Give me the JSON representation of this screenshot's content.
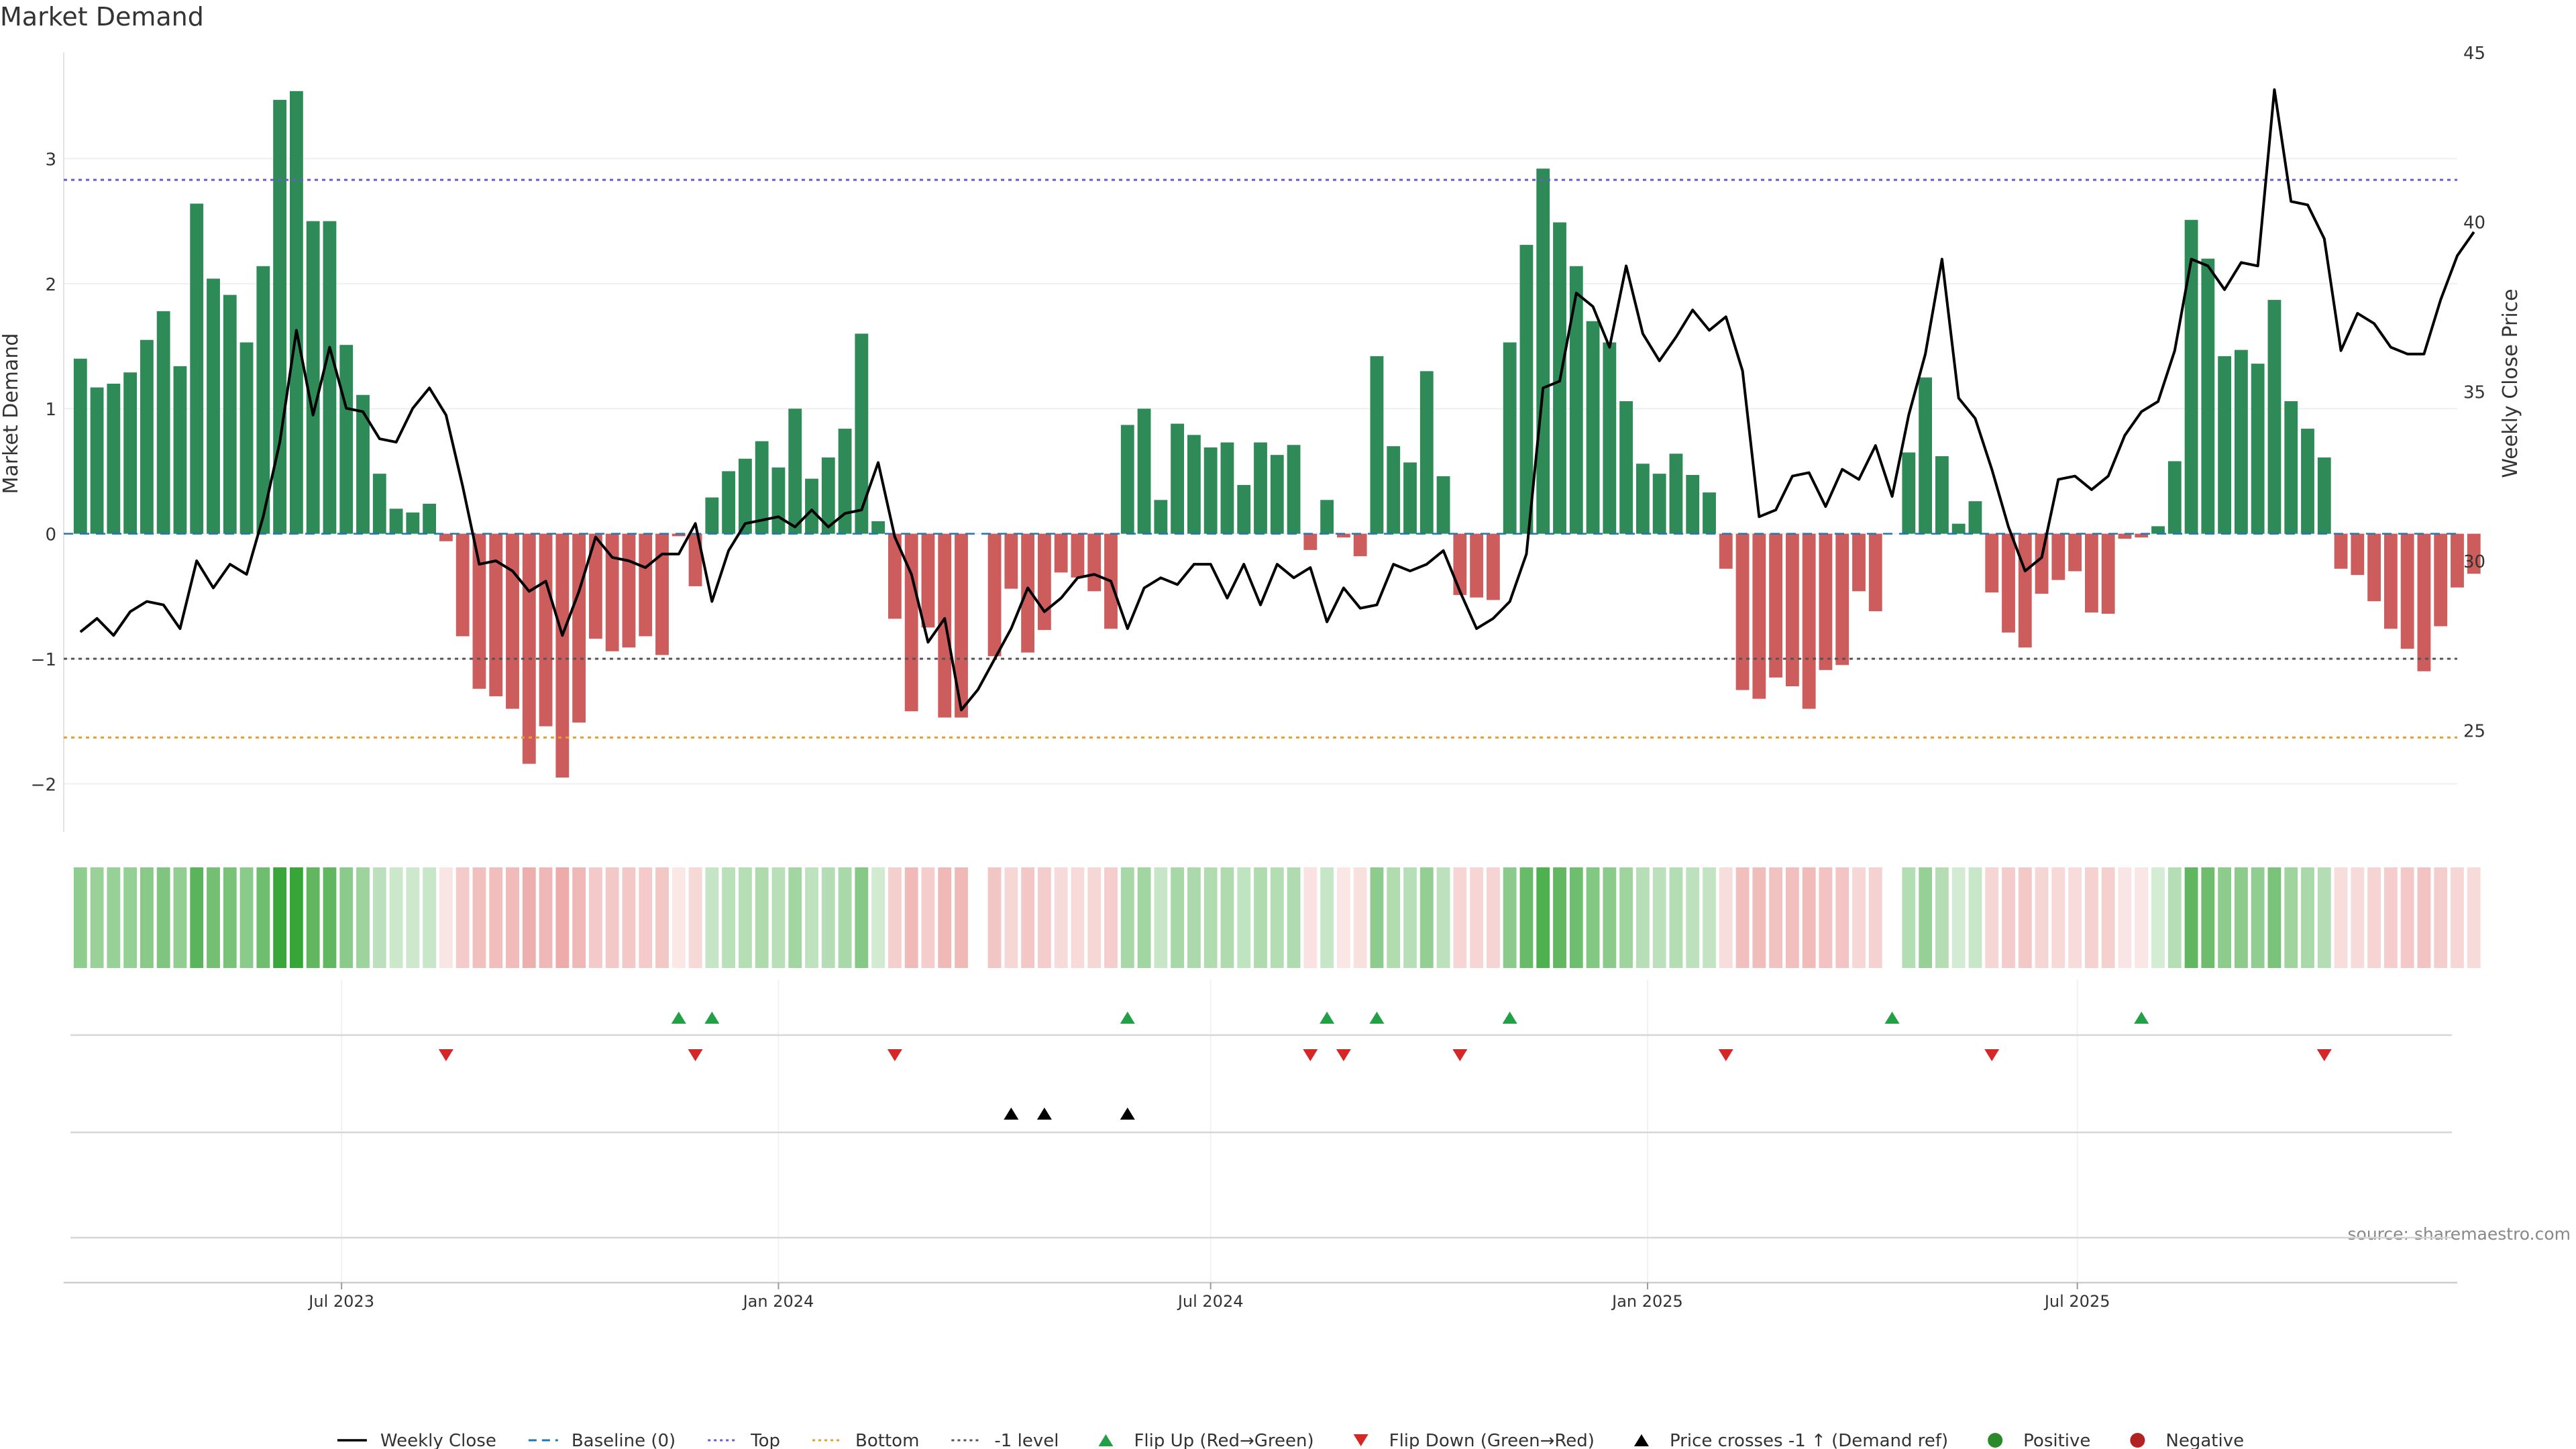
{
  "chart_data": {
    "type": "bar",
    "title": "Market Demand",
    "ylabel": "Market Demand",
    "y2label": "Weekly Close Price",
    "ylim": [
      -2.25,
      3.85
    ],
    "y2lim": [
      22.5,
      45.0
    ],
    "yticks": [
      -2,
      -1,
      0,
      1,
      2,
      3
    ],
    "y2ticks": [
      25,
      30,
      35,
      40,
      45
    ],
    "xlim": [
      "2023-03-06",
      "2025-12-08"
    ],
    "xticks": [
      {
        "date": "2023-07-01",
        "label": "Jul 2023"
      },
      {
        "date": "2024-01-01",
        "label": "Jan 2024"
      },
      {
        "date": "2024-07-01",
        "label": "Jul 2024"
      },
      {
        "date": "2025-01-01",
        "label": "Jan 2025"
      },
      {
        "date": "2025-07-01",
        "label": "Jul 2025"
      }
    ],
    "start_date": "2023-03-13",
    "week_step_days": 7,
    "demand": [
      1.4,
      1.17,
      1.2,
      1.29,
      1.55,
      1.78,
      1.34,
      2.64,
      2.04,
      1.91,
      1.53,
      2.14,
      3.47,
      3.54,
      2.5,
      2.5,
      1.51,
      1.11,
      0.48,
      0.2,
      0.17,
      0.24,
      -0.06,
      -0.82,
      -1.24,
      -1.3,
      -1.4,
      -1.84,
      -1.54,
      -1.95,
      -1.51,
      -0.84,
      -0.94,
      -0.91,
      -0.82,
      -0.97,
      -0.02,
      -0.42,
      0.29,
      0.5,
      0.6,
      0.74,
      0.53,
      1.0,
      0.44,
      0.61,
      0.84,
      1.6,
      0.1,
      -0.68,
      -1.42,
      -0.75,
      -1.47,
      -1.47,
      0,
      -0.98,
      -0.44,
      -0.95,
      -0.77,
      -0.31,
      -0.35,
      -0.46,
      -0.76,
      0.87,
      1.0,
      0.27,
      0.88,
      0.79,
      0.69,
      0.73,
      0.39,
      0.73,
      0.63,
      0.71,
      -0.13,
      0.27,
      -0.03,
      -0.18,
      1.42,
      0.7,
      0.57,
      1.3,
      0.46,
      -0.49,
      -0.51,
      -0.53,
      1.53,
      2.31,
      2.92,
      2.49,
      2.14,
      1.7,
      1.53,
      1.06,
      0.56,
      0.48,
      0.64,
      0.47,
      0.33,
      -0.28,
      -1.25,
      -1.32,
      -1.15,
      -1.22,
      -1.4,
      -1.09,
      -1.05,
      -0.46,
      -0.62,
      0,
      0.65,
      1.25,
      0.62,
      0.08,
      0.26,
      -0.47,
      -0.79,
      -0.91,
      -0.48,
      -0.37,
      -0.3,
      -0.63,
      -0.64,
      -0.04,
      -0.03,
      0.06,
      0.58,
      2.51,
      2.2,
      1.42,
      1.47,
      1.36,
      1.87,
      1.06,
      0.84,
      0.61,
      -0.28,
      -0.33,
      -0.54,
      -0.76,
      -0.92,
      -1.1,
      -0.74,
      -0.43,
      -0.32
    ],
    "close": [
      27.9,
      28.3,
      27.8,
      28.5,
      28.8,
      28.7,
      28.0,
      30.0,
      29.2,
      29.9,
      29.6,
      31.3,
      33.5,
      36.8,
      34.3,
      36.3,
      34.5,
      34.4,
      33.6,
      33.5,
      34.5,
      35.1,
      34.3,
      32.2,
      29.9,
      30.0,
      29.7,
      29.1,
      29.4,
      27.8,
      29.1,
      30.7,
      30.1,
      30.0,
      29.8,
      30.2,
      30.2,
      31.1,
      28.8,
      30.3,
      31.1,
      31.2,
      31.3,
      31.0,
      31.5,
      31.0,
      31.4,
      31.5,
      32.9,
      30.7,
      29.6,
      27.6,
      28.3,
      25.6,
      26.2,
      27.1,
      28.0,
      29.2,
      28.5,
      28.9,
      29.5,
      29.6,
      29.4,
      28.0,
      29.2,
      29.5,
      29.3,
      29.9,
      29.9,
      28.9,
      29.9,
      28.7,
      29.9,
      29.5,
      29.8,
      28.2,
      29.2,
      28.6,
      28.7,
      29.9,
      29.7,
      29.9,
      30.3,
      29.1,
      28.0,
      28.3,
      28.8,
      30.2,
      35.1,
      35.3,
      37.9,
      37.5,
      36.3,
      38.7,
      36.7,
      35.9,
      36.6,
      37.4,
      36.8,
      37.2,
      35.6,
      31.3,
      31.5,
      32.5,
      32.6,
      31.6,
      32.7,
      32.4,
      33.4,
      31.9,
      34.3,
      36.1,
      38.9,
      34.8,
      34.2,
      32.7,
      31.0,
      29.7,
      30.1,
      32.4,
      32.5,
      32.1,
      32.5,
      33.7,
      34.4,
      34.7,
      36.2,
      38.9,
      38.7,
      38.0,
      38.8,
      38.7,
      43.9,
      40.6,
      40.5,
      39.5,
      36.2,
      37.3,
      37.0,
      36.3,
      36.1,
      36.1,
      37.7,
      39.0,
      39.7
    ],
    "reference_lines": [
      {
        "name": "Baseline (0)",
        "value": 0,
        "color": "#1f77b4",
        "dash": "dashed"
      },
      {
        "name": "Top",
        "value": 2.83,
        "color": "#6a5acd",
        "dash": "dotted"
      },
      {
        "name": "Bottom",
        "value": -1.63,
        "color": "#e6a02a",
        "dash": "dotted"
      },
      {
        "name": "-1 level",
        "value": -1,
        "color": "#555555",
        "dash": "dotted"
      }
    ],
    "flip_up_weeks": [
      36,
      38,
      63,
      75,
      78,
      86,
      109,
      124
    ],
    "flip_down_weeks": [
      22,
      37,
      49,
      74,
      76,
      83,
      99,
      115,
      135
    ],
    "price_cross_weeks": [
      56,
      58,
      63
    ],
    "colors": {
      "positive": "#2e8b57",
      "negative": "#cd5c5c",
      "close": "#000000",
      "flip_up": "#22a045",
      "flip_down": "#d62728",
      "cross": "#000000",
      "strip_positive": "#2ca02c",
      "strip_negative": "#d9534f",
      "legend_positive": "#2a8a2a",
      "legend_negative": "#b22222"
    },
    "legend": [
      {
        "label": "Weekly Close",
        "kind": "line",
        "color": "#000000"
      },
      {
        "label": "Baseline (0)",
        "kind": "dashed",
        "color": "#1f77b4"
      },
      {
        "label": "Top",
        "kind": "dotted",
        "color": "#6a5acd"
      },
      {
        "label": "Bottom",
        "kind": "dotted",
        "color": "#e6a02a"
      },
      {
        "label": "-1 level",
        "kind": "dotted",
        "color": "#555555"
      },
      {
        "label": "Flip Up (Red→Green)",
        "kind": "triangle-up",
        "color": "#22a045"
      },
      {
        "label": "Flip Down (Green→Red)",
        "kind": "triangle-down",
        "color": "#d62728"
      },
      {
        "label": "Price crosses -1 ↑ (Demand ref)",
        "kind": "triangle-up",
        "color": "#000000"
      },
      {
        "label": "Positive",
        "kind": "dot",
        "color": "#2a8a2a"
      },
      {
        "label": "Negative",
        "kind": "dot",
        "color": "#b22222"
      }
    ],
    "legend_placement": "bottom",
    "source": "source: sharemaestro.com"
  }
}
